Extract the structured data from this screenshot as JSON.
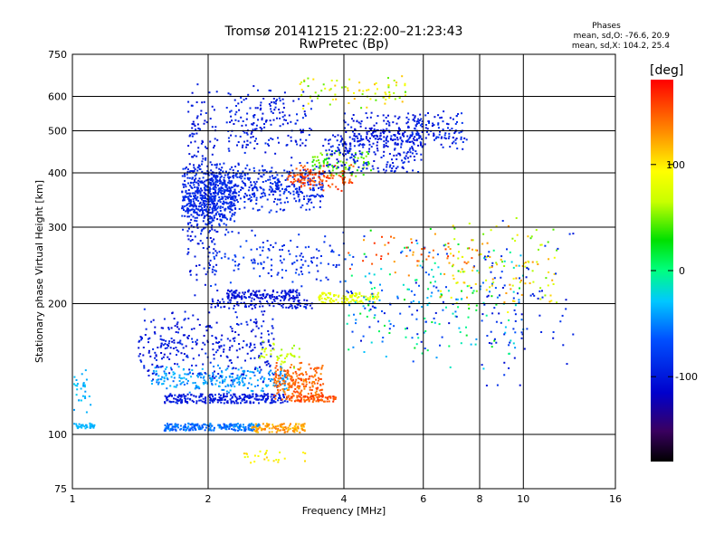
{
  "title_line1": "Tromsø 20141215 21:22:00–21:23:43",
  "title_line2": "RwPretec (Bp)",
  "phase_box": {
    "heading": "Phases",
    "line_o": "mean, sd,O: -76.6, 20.9",
    "line_x": "mean, sd,X: 104.2, 25.4"
  },
  "colorbar": {
    "title": "[deg]",
    "ticks": [
      {
        "value": 100,
        "label": "100"
      },
      {
        "value": 0,
        "label": "0"
      },
      {
        "value": -100,
        "label": "-100"
      }
    ],
    "range": [
      -180,
      180
    ],
    "colormap": "rainbow-black-to-red"
  },
  "chart_data": {
    "type": "scatter",
    "xlabel": "Frequency [MHz]",
    "ylabel": "Stationary phase Virtual Height [km]",
    "xscale": "log",
    "yscale": "log",
    "xlim": [
      1,
      16
    ],
    "ylim": [
      75,
      750
    ],
    "grid": true,
    "x_ticks": [
      {
        "value": 1,
        "label": "1"
      },
      {
        "value": 2,
        "label": "2"
      },
      {
        "value": 4,
        "label": "4"
      },
      {
        "value": 6,
        "label": "6"
      },
      {
        "value": 8,
        "label": "8"
      },
      {
        "value": 10,
        "label": "10"
      },
      {
        "value": 16,
        "label": "16"
      }
    ],
    "y_ticks": [
      {
        "value": 75,
        "label": "75"
      },
      {
        "value": 100,
        "label": "100"
      },
      {
        "value": 200,
        "label": "200"
      },
      {
        "value": 300,
        "label": "300"
      },
      {
        "value": 400,
        "label": "400"
      },
      {
        "value": 500,
        "label": "500"
      },
      {
        "value": 600,
        "label": "600"
      },
      {
        "value": 750,
        "label": "750"
      }
    ],
    "clusters": [
      {
        "f": [
          1.0,
          1.12
        ],
        "h": [
          103,
          106
        ],
        "phase": [
          -40,
          -30
        ],
        "n": 40,
        "shape": "band"
      },
      {
        "f": [
          1.0,
          1.1
        ],
        "h": [
          110,
          145
        ],
        "phase": [
          -45,
          -25
        ],
        "n": 30,
        "shape": "scatter"
      },
      {
        "f": [
          1.6,
          2.6
        ],
        "h": [
          102,
          106
        ],
        "phase": [
          -70,
          -40
        ],
        "n": 220,
        "shape": "band"
      },
      {
        "f": [
          2.5,
          3.3
        ],
        "h": [
          101,
          106
        ],
        "phase": [
          110,
          140
        ],
        "n": 110,
        "shape": "band"
      },
      {
        "f": [
          1.6,
          3.0
        ],
        "h": [
          118,
          124
        ],
        "phase": [
          -110,
          -90
        ],
        "n": 260,
        "shape": "band"
      },
      {
        "f": [
          1.5,
          3.0
        ],
        "h": [
          124,
          145
        ],
        "phase": [
          -60,
          -30
        ],
        "n": 260,
        "shape": "scatter"
      },
      {
        "f": [
          1.4,
          2.8
        ],
        "h": [
          130,
          200
        ],
        "phase": [
          -115,
          -85
        ],
        "n": 300,
        "shape": "scatter"
      },
      {
        "f": [
          2.8,
          3.6
        ],
        "h": [
          118,
          148
        ],
        "phase": [
          130,
          160
        ],
        "n": 200,
        "shape": "scatter"
      },
      {
        "f": [
          3.0,
          3.9
        ],
        "h": [
          119,
          123
        ],
        "phase": [
          140,
          165
        ],
        "n": 90,
        "shape": "band"
      },
      {
        "f": [
          2.6,
          3.2
        ],
        "h": [
          140,
          165
        ],
        "phase": [
          55,
          80
        ],
        "n": 40,
        "shape": "scatter"
      },
      {
        "f": [
          2.4,
          3.3
        ],
        "h": [
          85,
          95
        ],
        "phase": [
          80,
          110
        ],
        "n": 25,
        "shape": "scatter"
      },
      {
        "f": [
          1.8,
          2.1
        ],
        "h": [
          200,
          650
        ],
        "phase": [
          -110,
          -90
        ],
        "n": 240,
        "shape": "scatter"
      },
      {
        "f": [
          1.75,
          2.3
        ],
        "h": [
          290,
          420
        ],
        "phase": [
          -100,
          -80
        ],
        "n": 420,
        "shape": "scatter"
      },
      {
        "f": [
          2.0,
          3.6
        ],
        "h": [
          320,
          430
        ],
        "phase": [
          -100,
          -80
        ],
        "n": 420,
        "shape": "scatter"
      },
      {
        "f": [
          2.2,
          3.4
        ],
        "h": [
          420,
          650
        ],
        "phase": [
          -110,
          -85
        ],
        "n": 180,
        "shape": "scatter"
      },
      {
        "f": [
          3.0,
          4.2
        ],
        "h": [
          360,
          420
        ],
        "phase": [
          140,
          170
        ],
        "n": 120,
        "shape": "scatter"
      },
      {
        "f": [
          3.4,
          4.6
        ],
        "h": [
          390,
          460
        ],
        "phase": [
          30,
          60
        ],
        "n": 80,
        "shape": "scatter"
      },
      {
        "f": [
          3.6,
          6.0
        ],
        "h": [
          400,
          490
        ],
        "phase": [
          -110,
          -85
        ],
        "n": 200,
        "shape": "band"
      },
      {
        "f": [
          4.0,
          6.0
        ],
        "h": [
          440,
          560
        ],
        "phase": [
          -115,
          -90
        ],
        "n": 180,
        "shape": "scatter"
      },
      {
        "f": [
          3.2,
          5.5
        ],
        "h": [
          560,
          680
        ],
        "phase": [
          40,
          120
        ],
        "n": 80,
        "shape": "scatter"
      },
      {
        "f": [
          5.5,
          7.5
        ],
        "h": [
          440,
          560
        ],
        "phase": [
          -110,
          -80
        ],
        "n": 120,
        "shape": "scatter"
      },
      {
        "f": [
          2.2,
          3.2
        ],
        "h": [
          205,
          215
        ],
        "phase": [
          -115,
          -95
        ],
        "n": 140,
        "shape": "band"
      },
      {
        "f": [
          2.0,
          3.4
        ],
        "h": [
          195,
          205
        ],
        "phase": [
          -110,
          -90
        ],
        "n": 90,
        "shape": "band"
      },
      {
        "f": [
          3.5,
          4.8
        ],
        "h": [
          200,
          212
        ],
        "phase": [
          70,
          95
        ],
        "n": 110,
        "shape": "band"
      },
      {
        "f": [
          2.0,
          4.0
        ],
        "h": [
          215,
          300
        ],
        "phase": [
          -100,
          -70
        ],
        "n": 140,
        "shape": "scatter"
      },
      {
        "f": [
          4.0,
          10.0
        ],
        "h": [
          140,
          300
        ],
        "phase": [
          -110,
          30
        ],
        "n": 260,
        "shape": "scatter"
      },
      {
        "f": [
          4.0,
          8.0
        ],
        "h": [
          230,
          300
        ],
        "phase": [
          120,
          170
        ],
        "n": 50,
        "shape": "scatter"
      },
      {
        "f": [
          6.5,
          12.0
        ],
        "h": [
          190,
          320
        ],
        "phase": [
          40,
          130
        ],
        "n": 120,
        "shape": "scatter"
      },
      {
        "f": [
          8.0,
          13.0
        ],
        "h": [
          120,
          340
        ],
        "phase": [
          -110,
          -80
        ],
        "n": 60,
        "shape": "scatter"
      }
    ]
  }
}
